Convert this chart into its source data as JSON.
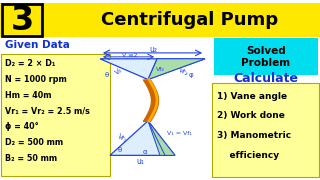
{
  "bg_yellow": "#FFE800",
  "bg_white": "#FFFFFF",
  "bg_cyan": "#00DDEE",
  "bg_box_yellow": "#FFFF99",
  "title_number": "3",
  "title_text": "Centrifugal Pump",
  "solved_label": "Solved\nProblem",
  "given_data_label": "Given Data",
  "given_data_lines": [
    "D₂ = 2 × D₁",
    "N = 1000 rpm",
    "Hm = 40m",
    "Vr₁ = Vr₂ = 2.5 m/s",
    "ϕ = 40°",
    "D₂ = 500 mm",
    "B₂ = 50 mm"
  ],
  "calculate_label": "Calculate",
  "calculate_lines": [
    "1) Vane angle",
    "2) Work done",
    "3) Manometric",
    "    efficiency"
  ],
  "blue_color": "#1133CC",
  "diagram_blue": "#2244DD",
  "diagram_green": "#88CC88",
  "orange_dark": "#CC6600",
  "orange_light": "#FFAA00"
}
